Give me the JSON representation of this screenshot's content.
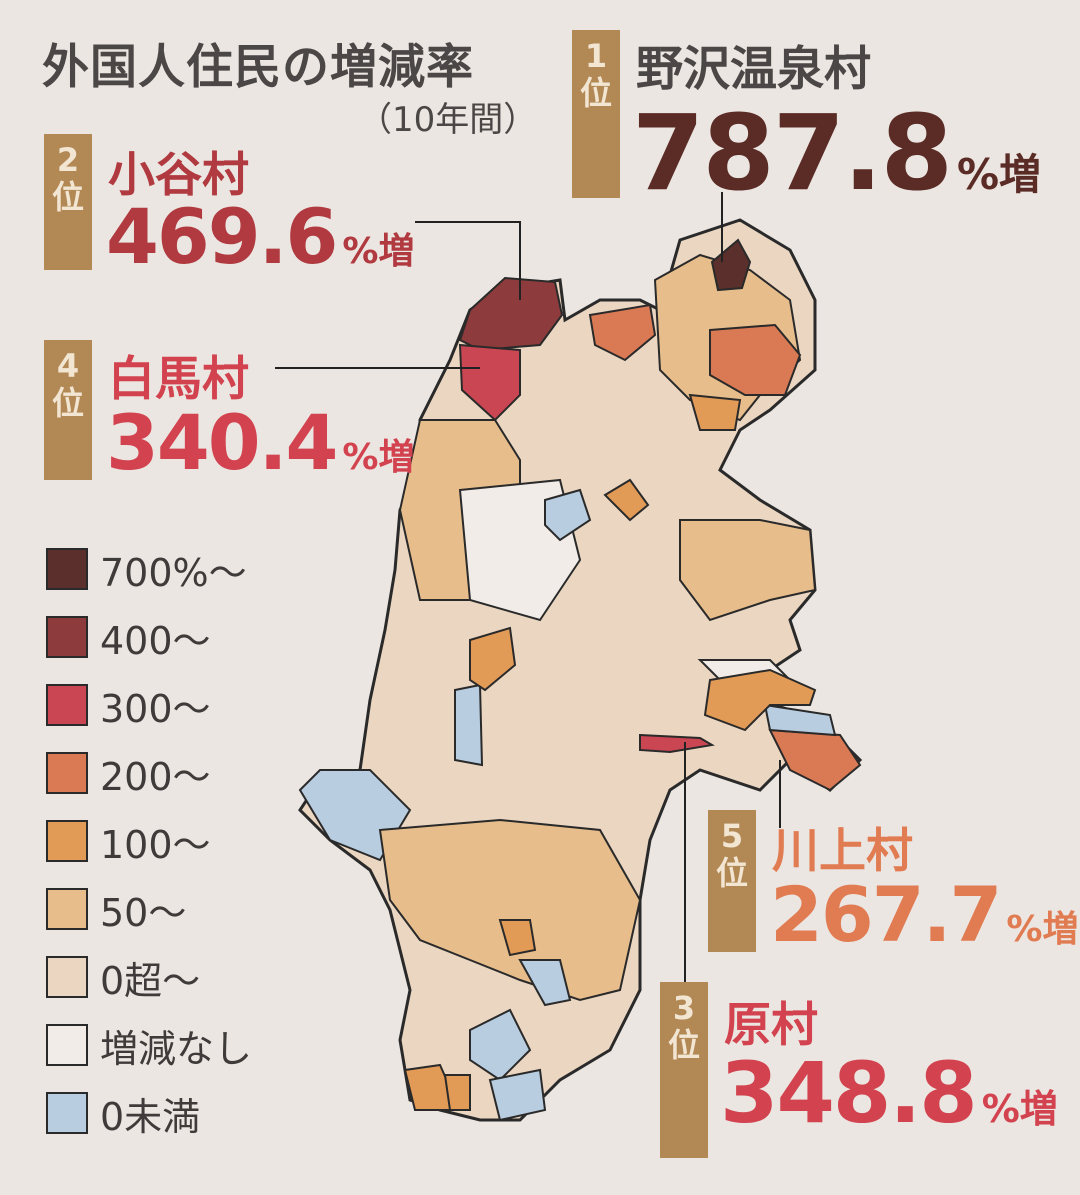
{
  "title": "外国人住民の増減率",
  "subtitle": "（10年間）",
  "rankings": [
    {
      "rank_label": "1位",
      "name": "野沢温泉村",
      "value": "787.8",
      "unit": "%増",
      "color": "#5b2b26"
    },
    {
      "rank_label": "2位",
      "name": "小谷村",
      "value": "469.6",
      "unit": "%増",
      "color": "#b03a40"
    },
    {
      "rank_label": "3位",
      "name": "原村",
      "value": "348.8",
      "unit": "%増",
      "color": "#d2434f"
    },
    {
      "rank_label": "4位",
      "name": "白馬村",
      "value": "340.4",
      "unit": "%増",
      "color": "#d2434f"
    },
    {
      "rank_label": "5位",
      "name": "川上村",
      "value": "267.7",
      "unit": "%増",
      "color": "#e07b52"
    }
  ],
  "legend": [
    {
      "label": "700%〜",
      "color": "#5b2f2b"
    },
    {
      "label": "400〜",
      "color": "#8d3b3c"
    },
    {
      "label": "300〜",
      "color": "#c94652"
    },
    {
      "label": "200〜",
      "color": "#d97a55"
    },
    {
      "label": "100〜",
      "color": "#e29a57"
    },
    {
      "label": "50〜",
      "color": "#e7bd8c"
    },
    {
      "label": "0超〜",
      "color": "#ead6c1"
    },
    {
      "label": "増減なし",
      "color": "#f1ece8"
    },
    {
      "label": "0未満",
      "color": "#b9cde0"
    }
  ]
}
